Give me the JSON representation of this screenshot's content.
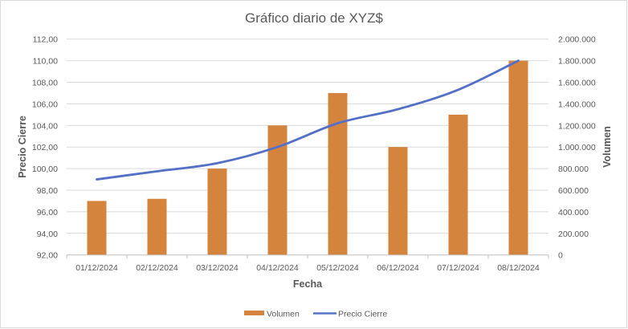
{
  "chart_data": {
    "type": "bar+line",
    "title": "Gráfico diario de XYZ$",
    "xlabel": "Fecha",
    "ylabel": "Precio Cierre",
    "y2label": "Volumen",
    "categories": [
      "01/12/2024",
      "02/12/2024",
      "03/12/2024",
      "04/12/2024",
      "05/12/2024",
      "06/12/2024",
      "07/12/2024",
      "08/12/2024"
    ],
    "series": [
      {
        "name": "Volumen",
        "type": "bar",
        "axis": "right",
        "color": "#D5843E",
        "values": [
          500000,
          520000,
          800000,
          1200000,
          1500000,
          1000000,
          1300000,
          1800000
        ]
      },
      {
        "name": "Precio Cierre",
        "type": "line",
        "axis": "left",
        "color": "#5470C6",
        "values": [
          99.0,
          99.75,
          100.5,
          102.0,
          104.2,
          105.5,
          107.3,
          110.0
        ]
      }
    ],
    "ylim": [
      92,
      112
    ],
    "y2lim": [
      0,
      2000000
    ],
    "yticks": [
      "92,00",
      "94,00",
      "96,00",
      "98,00",
      "100,00",
      "102,00",
      "104,00",
      "106,00",
      "108,00",
      "110,00",
      "112,00"
    ],
    "y2ticks": [
      "0",
      "200.000",
      "400.000",
      "600.000",
      "800.000",
      "1.000.000",
      "1.200.000",
      "1.400.000",
      "1.600.000",
      "1.800.000",
      "2.000.000"
    ],
    "grid": true,
    "legend_position": "bottom"
  },
  "colors": {
    "grid": "#D9D9D9",
    "text": "#595959",
    "axis": "#BFBFBF"
  }
}
